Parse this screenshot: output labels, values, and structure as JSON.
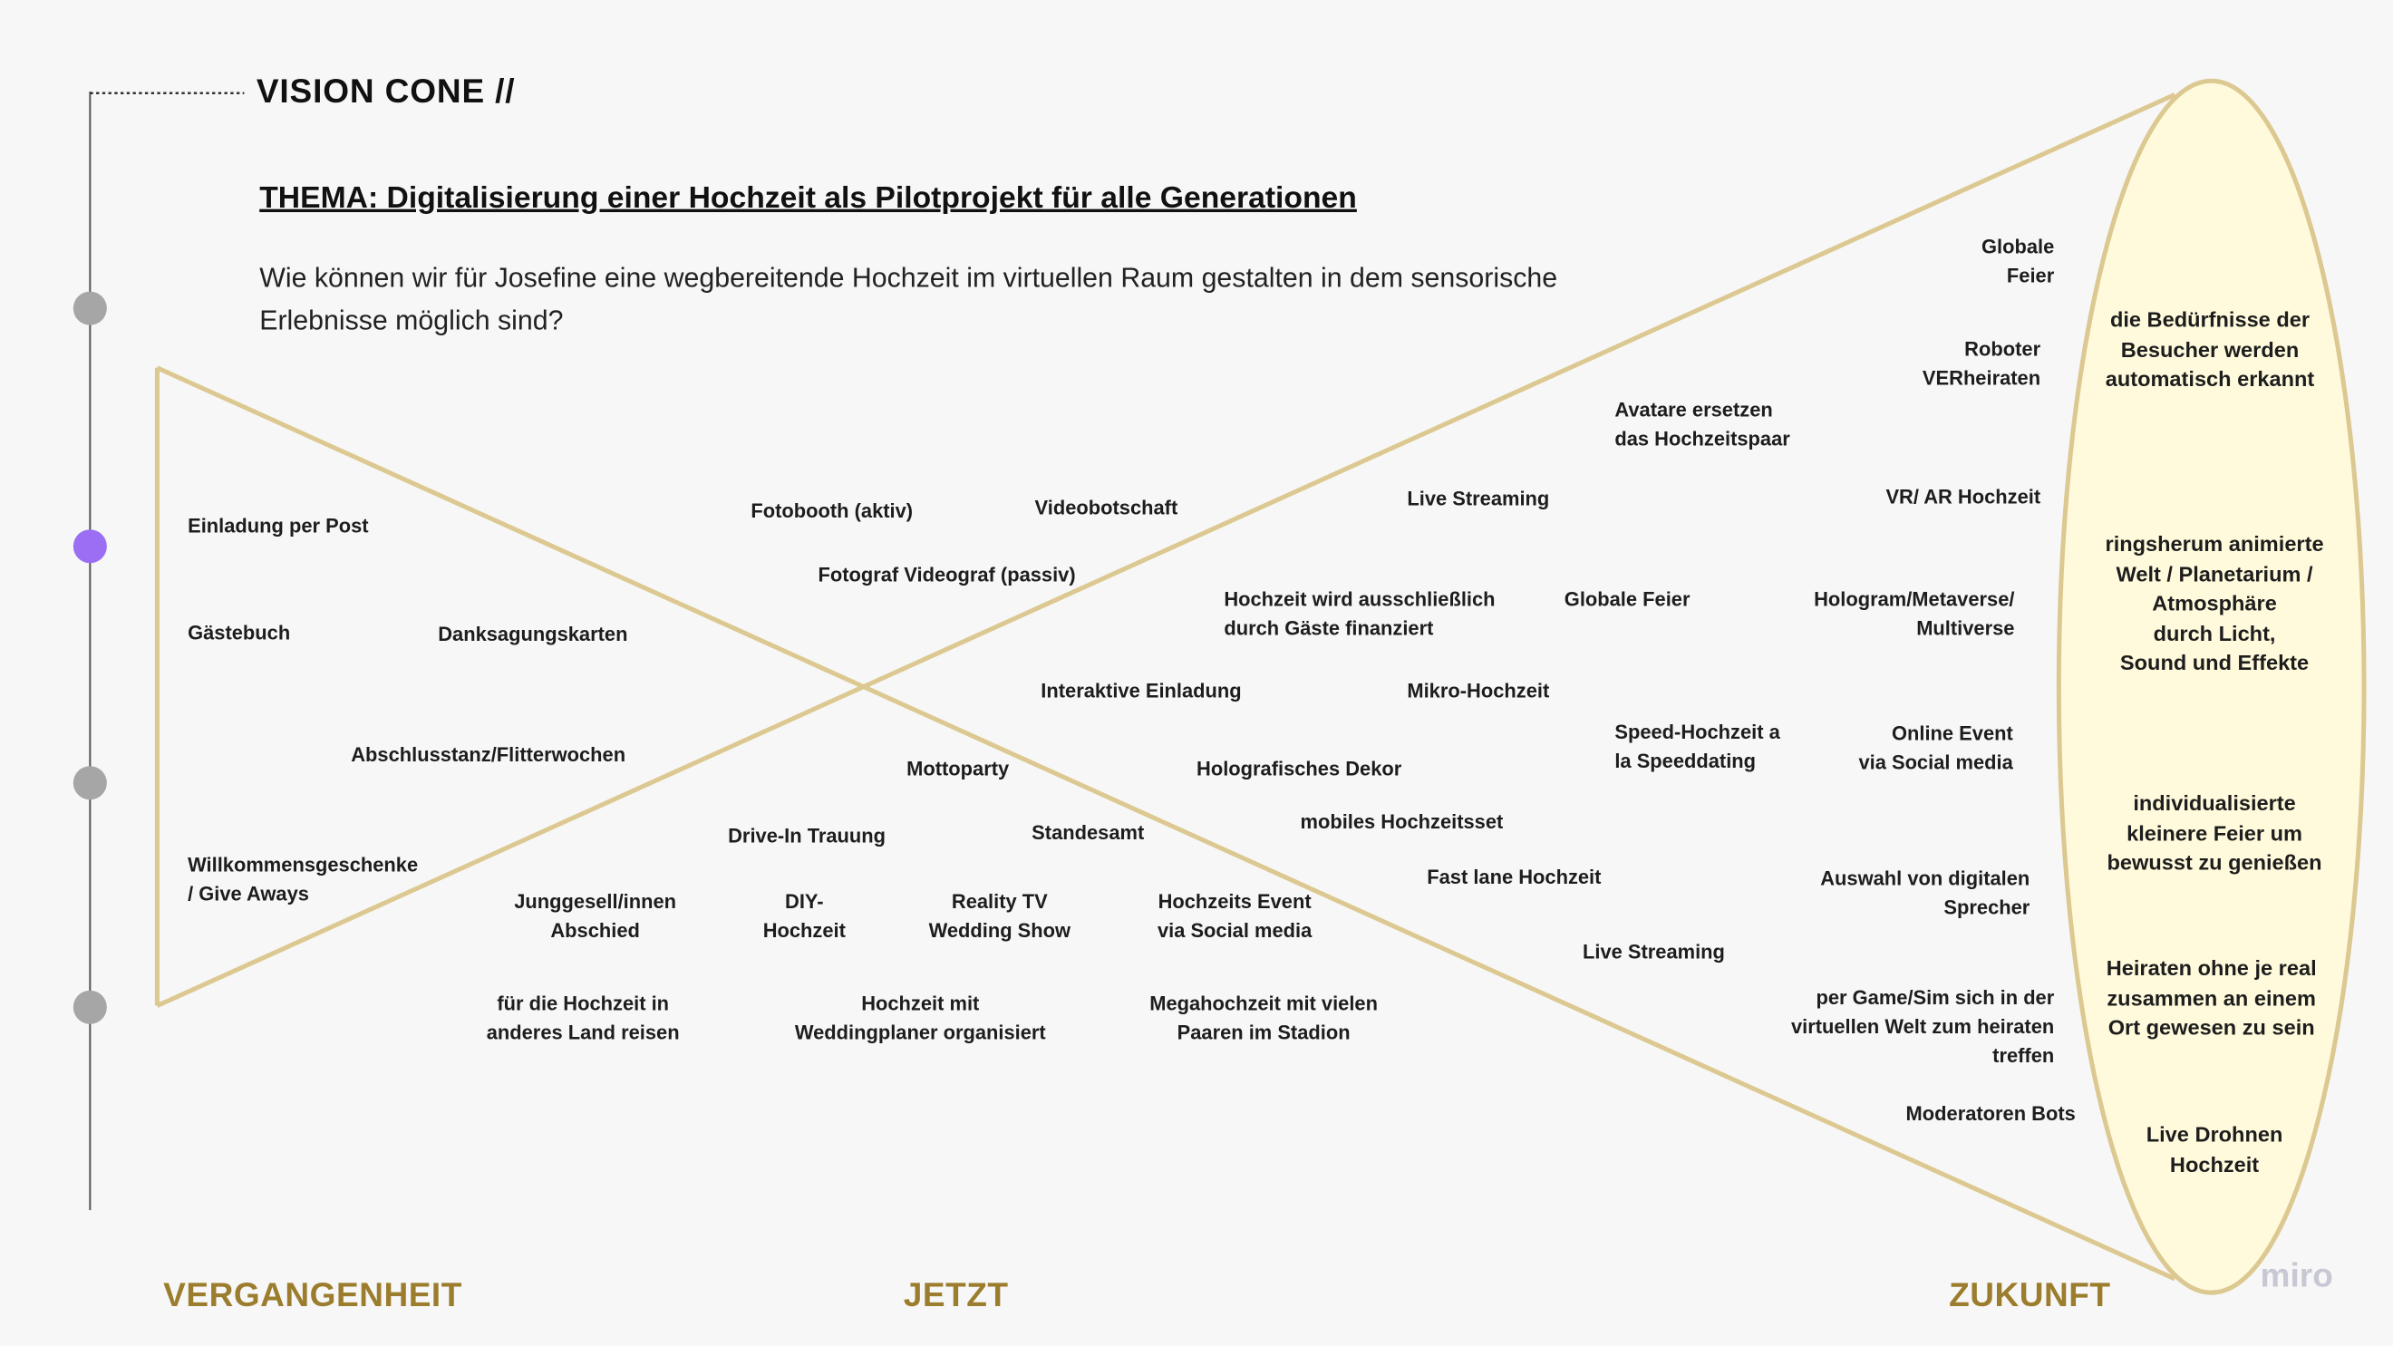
{
  "header": {
    "title": "VISION CONE //",
    "thema": "THEMA:  Digitalisierung einer Hochzeit als Pilotprojekt für alle Generationen",
    "question": "Wie können wir für Josefine eine wegbereitende Hochzeit im virtuellen Raum gestalten in dem sensorische Erlebnisse möglich sind?"
  },
  "phases": {
    "past": "VERGANGENHEIT",
    "now": "JETZT",
    "future": "ZUKUNFT"
  },
  "colors": {
    "cone": "#dcc891",
    "ellipse_fill": "#fffadc",
    "phase": "#9b7d2d",
    "active_dot": "#9b6ef3",
    "dot": "#a6a6a6"
  },
  "items": [
    "Einladung per Post",
    "Gästebuch",
    "Danksagungskarten",
    "Abschlusstanz/Flitterwochen",
    "Willkommensgeschenke\n/ Give Aways",
    "Junggesell/innen\nAbschied",
    "für die  Hochzeit in\nanderes  Land reisen",
    "Fotobooth (aktiv)",
    "Videobotschaft",
    "Fotograf Videograf (passiv)",
    "Interaktive Einladung",
    "Mottoparty",
    "Drive-In Trauung",
    "Standesamt",
    "DIY-\nHochzeit",
    "Reality TV\nWedding Show",
    "Hochzeits Event\nvia Social media",
    "Hochzeit mit\nWeddingplaner  organisiert",
    "Megahochzeit mit vielen\nPaaren im Stadion",
    "Live Streaming",
    "Hochzeit wird ausschließlich\ndurch Gäste finanziert",
    "Globale Feier",
    "Mikro-Hochzeit",
    "Holografisches Dekor",
    "mobiles Hochzeitsset",
    "Fast lane Hochzeit",
    "Live Streaming",
    "Avatare ersetzen\ndas Hochzeitspaar",
    "Speed-Hochzeit a\nla Speeddating",
    "Globale\nFeier",
    "Roboter\nVERheiraten",
    "VR/ AR  Hochzeit",
    "Hologram/Metaverse/\nMultiverse",
    "Online Event\nvia Social media",
    "Auswahl  von  digitalen\nSprecher",
    "per Game/Sim sich in der\nvirtuellen Welt zum heiraten\ntreffen",
    "Moderatoren  Bots"
  ],
  "vision": [
    "die Bedürfnisse der\nBesucher werden\nautomatisch erkannt",
    "ringsherum  animierte\nWelt /  Planetarium /\nAtmosphäre\ndurch Licht,\nSound und Effekte",
    "individualisierte\nkleinere Feier um\nbewusst zu  genießen",
    "Heiraten ohne je real\nzusammen an einem\nOrt gewesen zu sein",
    "Live Drohnen\nHochzeit"
  ],
  "watermark": "miro"
}
